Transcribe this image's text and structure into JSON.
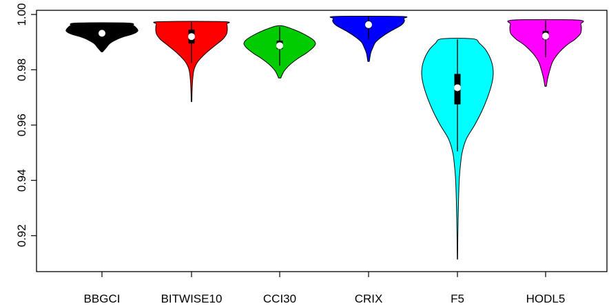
{
  "chart_data": {
    "type": "violin",
    "title": "",
    "xlabel": "",
    "ylabel": "",
    "ylim": [
      0.907,
      1.0015
    ],
    "yticks": [
      0.92,
      0.94,
      0.96,
      0.98,
      1.0
    ],
    "ytick_labels": [
      "0.92",
      "0.94",
      "0.96",
      "0.98",
      "1.00"
    ],
    "grid": false,
    "legend": "none",
    "categories": [
      "BBGCI",
      "BITWISE10",
      "CCI30",
      "CRIX",
      "F5",
      "HODL5"
    ],
    "series": [
      {
        "name": "BBGCI",
        "color": "#000000",
        "min": 0.9865,
        "max": 0.9969,
        "q1": 0.9925,
        "median": 0.9932,
        "q3": 0.9945,
        "whisker_low": 0.9905,
        "whisker_high": 0.9966,
        "density": [
          [
            0.9865,
            0.02
          ],
          [
            0.988,
            0.12
          ],
          [
            0.9895,
            0.22
          ],
          [
            0.991,
            0.42
          ],
          [
            0.992,
            0.62
          ],
          [
            0.993,
            0.88
          ],
          [
            0.994,
            1.0
          ],
          [
            0.995,
            0.97
          ],
          [
            0.996,
            0.88
          ],
          [
            0.9969,
            0.72
          ]
        ]
      },
      {
        "name": "BITWISE10",
        "color": "#ff0000",
        "min": 0.9685,
        "max": 0.9974,
        "q1": 0.9895,
        "median": 0.992,
        "q3": 0.9945,
        "whisker_low": 0.9825,
        "whisker_high": 0.9972,
        "density": [
          [
            0.9685,
            0.01
          ],
          [
            0.972,
            0.015
          ],
          [
            0.976,
            0.03
          ],
          [
            0.98,
            0.07
          ],
          [
            0.983,
            0.18
          ],
          [
            0.986,
            0.4
          ],
          [
            0.989,
            0.68
          ],
          [
            0.991,
            0.87
          ],
          [
            0.993,
            0.98
          ],
          [
            0.995,
            1.0
          ],
          [
            0.9965,
            0.98
          ],
          [
            0.9974,
            0.9
          ]
        ]
      },
      {
        "name": "CCI30",
        "color": "#00cc00",
        "min": 0.977,
        "max": 0.9958,
        "q1": 0.9875,
        "median": 0.9887,
        "q3": 0.9905,
        "whisker_low": 0.9815,
        "whisker_high": 0.9955,
        "density": [
          [
            0.977,
            0.03
          ],
          [
            0.9785,
            0.08
          ],
          [
            0.98,
            0.15
          ],
          [
            0.982,
            0.3
          ],
          [
            0.984,
            0.5
          ],
          [
            0.986,
            0.74
          ],
          [
            0.988,
            0.93
          ],
          [
            0.9895,
            1.0
          ],
          [
            0.991,
            0.92
          ],
          [
            0.993,
            0.66
          ],
          [
            0.9945,
            0.4
          ],
          [
            0.9958,
            0.1
          ]
        ]
      },
      {
        "name": "CRIX",
        "color": "#0000ff",
        "min": 0.983,
        "max": 0.9993,
        "q1": 0.995,
        "median": 0.9963,
        "q3": 0.9975,
        "whisker_low": 0.991,
        "whisker_high": 0.9992,
        "density": [
          [
            0.983,
            0.02
          ],
          [
            0.986,
            0.06
          ],
          [
            0.988,
            0.12
          ],
          [
            0.99,
            0.2
          ],
          [
            0.992,
            0.38
          ],
          [
            0.994,
            0.62
          ],
          [
            0.996,
            0.9
          ],
          [
            0.9975,
            1.0
          ],
          [
            0.9985,
            0.98
          ],
          [
            0.9993,
            0.92
          ]
        ]
      },
      {
        "name": "F5",
        "color": "#00ffff",
        "min": 0.9115,
        "max": 0.9912,
        "q1": 0.9675,
        "median": 0.9735,
        "q3": 0.9785,
        "whisker_low": 0.9505,
        "whisker_high": 0.991,
        "density": [
          [
            0.9115,
            0.005
          ],
          [
            0.92,
            0.012
          ],
          [
            0.93,
            0.025
          ],
          [
            0.94,
            0.05
          ],
          [
            0.945,
            0.08
          ],
          [
            0.95,
            0.13
          ],
          [
            0.955,
            0.25
          ],
          [
            0.96,
            0.48
          ],
          [
            0.965,
            0.68
          ],
          [
            0.97,
            0.84
          ],
          [
            0.975,
            0.96
          ],
          [
            0.979,
            1.0
          ],
          [
            0.983,
            0.95
          ],
          [
            0.987,
            0.8
          ],
          [
            0.9895,
            0.62
          ],
          [
            0.9912,
            0.43
          ]
        ]
      },
      {
        "name": "HODL5",
        "color": "#ff00ff",
        "min": 0.974,
        "max": 0.998,
        "q1": 0.991,
        "median": 0.9922,
        "q3": 0.994,
        "whisker_low": 0.9845,
        "whisker_high": 0.9978,
        "density": [
          [
            0.974,
            0.02
          ],
          [
            0.977,
            0.06
          ],
          [
            0.98,
            0.12
          ],
          [
            0.983,
            0.2
          ],
          [
            0.986,
            0.36
          ],
          [
            0.989,
            0.6
          ],
          [
            0.991,
            0.82
          ],
          [
            0.993,
            0.97
          ],
          [
            0.995,
            1.0
          ],
          [
            0.9965,
            0.98
          ],
          [
            0.998,
            0.9
          ]
        ]
      }
    ]
  }
}
